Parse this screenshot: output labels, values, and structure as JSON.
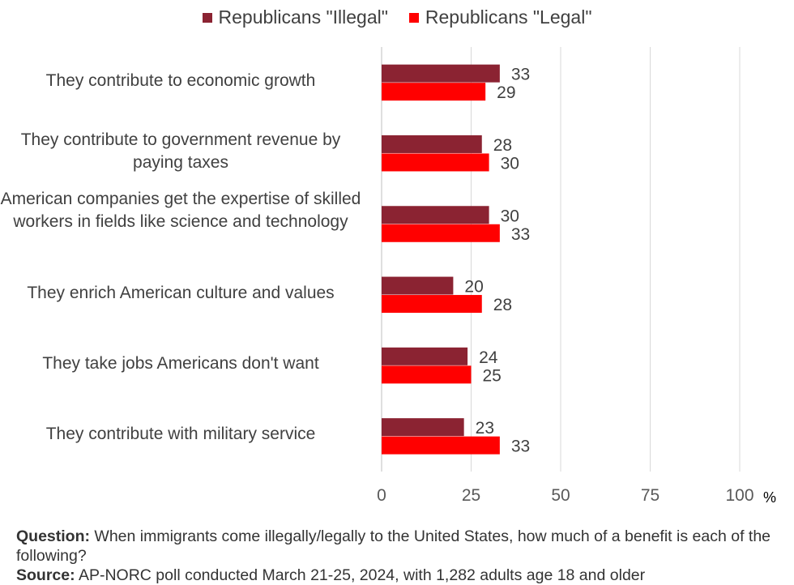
{
  "chart_data": {
    "type": "bar",
    "orientation": "horizontal",
    "categories": [
      "They contribute to economic growth",
      "They contribute to government revenue by paying taxes",
      "American companies get the expertise of skilled workers in fields like science and technology",
      "They enrich American culture and values",
      "They take jobs Americans don't want",
      "They contribute with military service"
    ],
    "series": [
      {
        "name": "Republicans \"Illegal\"",
        "color": "#8B2332",
        "values": [
          33,
          28,
          30,
          20,
          24,
          23
        ]
      },
      {
        "name": "Republicans \"Legal\"",
        "color": "#FF0000",
        "values": [
          29,
          30,
          33,
          28,
          25,
          33
        ]
      }
    ],
    "xlim": [
      0,
      100
    ],
    "xticks": [
      0,
      25,
      50,
      75,
      100
    ],
    "xunit": "%",
    "grid": true,
    "legend": "top-center"
  },
  "notes": {
    "question_label": "Question:",
    "question_text": "When immigrants come illegally/legally to the United States, how much of a benefit is each of the following?",
    "source_label": "Source:",
    "source_text": "AP-NORC poll conducted March 21-25, 2024, with 1,282 adults age 18 and older"
  }
}
